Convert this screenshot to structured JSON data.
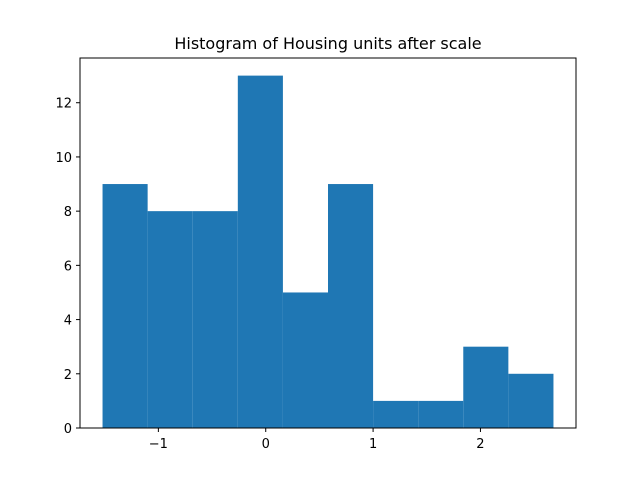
{
  "chart_data": {
    "type": "bar",
    "title": "Histogram of Housing units after scale",
    "xlabel": "",
    "ylabel": "",
    "bin_edges": [
      -1.52,
      -1.1,
      -0.68,
      -0.26,
      0.16,
      0.58,
      1.0,
      1.42,
      1.84,
      2.26,
      2.68
    ],
    "values": [
      9,
      8,
      8,
      13,
      5,
      9,
      1,
      1,
      3,
      2
    ],
    "xlim": [
      -1.73,
      2.89
    ],
    "ylim": [
      0,
      13.65
    ],
    "xticks": [
      -1,
      0,
      1,
      2
    ],
    "xtick_labels": [
      "−1",
      "0",
      "1",
      "2"
    ],
    "yticks": [
      0,
      2,
      4,
      6,
      8,
      10,
      12
    ],
    "ytick_labels": [
      "0",
      "2",
      "4",
      "6",
      "8",
      "10",
      "12"
    ],
    "bar_color": "#1f77b4",
    "grid": false,
    "legend": "none"
  }
}
